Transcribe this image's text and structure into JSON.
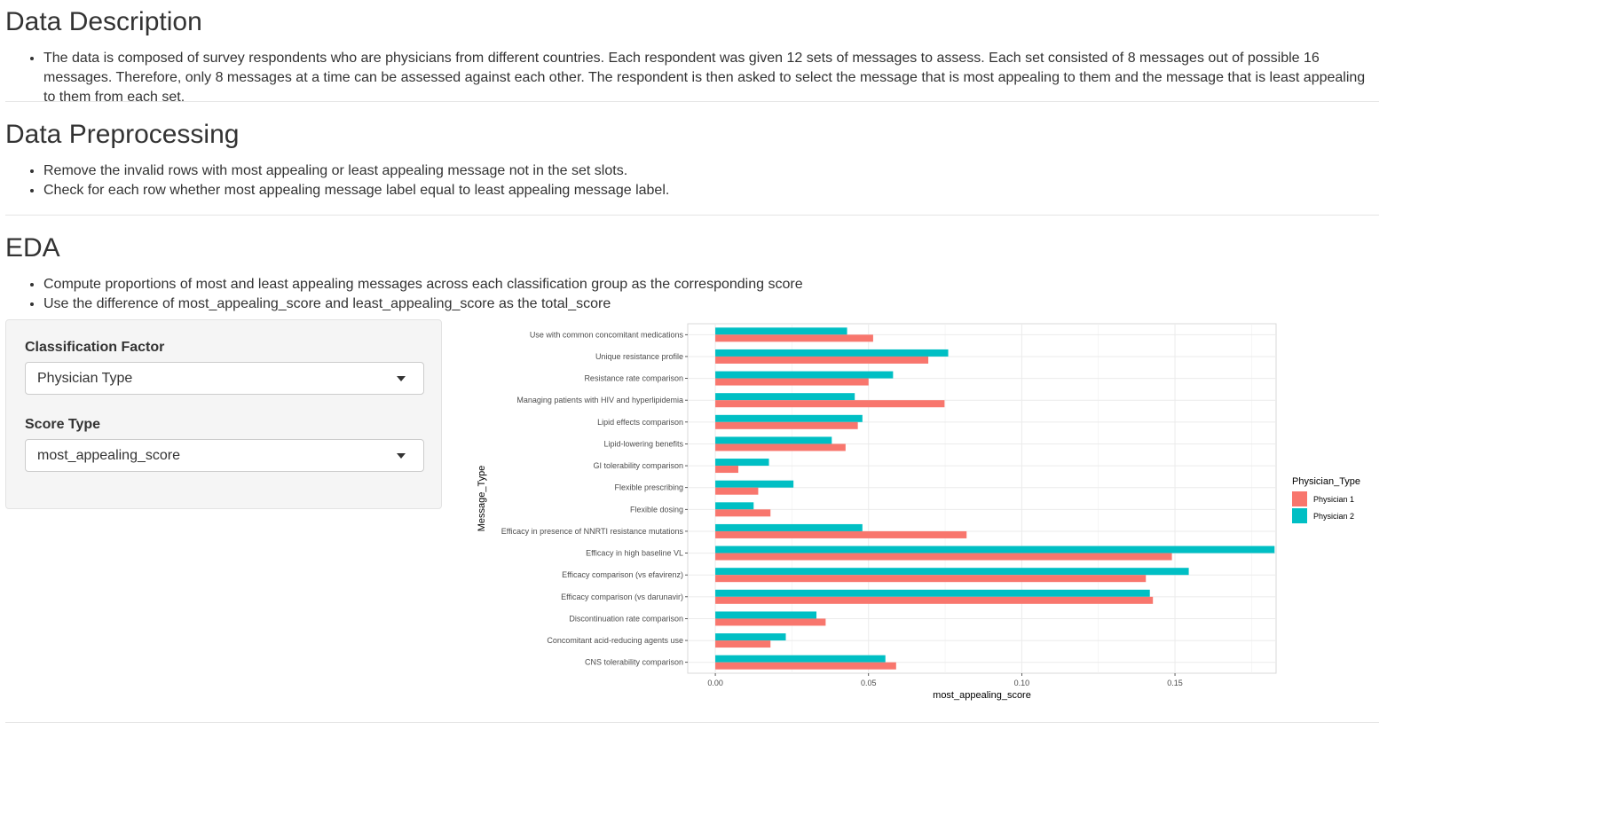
{
  "sections": {
    "description": {
      "title": "Data Description",
      "bullets": [
        "The data is composed of survey respondents who are physicians from different countries. Each respondent was given 12 sets of messages to assess. Each set consisted of 8 messages out of possible 16 messages. Therefore, only 8 messages at a time can be assessed against each other. The respondent is then asked to select the message that is most appealing to them and the message that is least appealing to them from each set."
      ]
    },
    "preprocessing": {
      "title": "Data Preprocessing",
      "bullets": [
        "Remove the invalid rows with most appealing or least appealing message not in the set slots.",
        "Check for each row whether most appealing message label equal to least appealing message label."
      ]
    },
    "eda": {
      "title": "EDA",
      "bullets": [
        "Compute proportions of most and least appealing messages across each classification group as the corresponding score",
        "Use the difference of most_appealing_score and least_appealing_score as the total_score"
      ]
    }
  },
  "controls": {
    "classification": {
      "label": "Classification Factor",
      "value": "Physician Type"
    },
    "score": {
      "label": "Score Type",
      "value": "most_appealing_score"
    }
  },
  "chart_data": {
    "type": "bar",
    "orientation": "horizontal",
    "xlabel": "most_appealing_score",
    "ylabel": "Message_Type",
    "xlim": [
      -0.009,
      0.183
    ],
    "xticks": [
      0.0,
      0.05,
      0.1,
      0.15
    ],
    "xtick_labels": [
      "0.00",
      "0.05",
      "0.10",
      "0.15"
    ],
    "grid": true,
    "legend": {
      "title": "Physician_Type",
      "position": "right"
    },
    "categories": [
      "Use with common concomitant medications",
      "Unique resistance profile",
      "Resistance rate comparison",
      "Managing patients with HIV and hyperlipidemia",
      "Lipid effects comparison",
      "Lipid-lowering benefits",
      "GI tolerability comparison",
      "Flexible prescribing",
      "Flexible dosing",
      "Efficacy in presence of NNRTI resistance mutations",
      "Efficacy in high baseline VL",
      "Efficacy comparison (vs efavirenz)",
      "Efficacy comparison (vs darunavir)",
      "Discontinuation rate comparison",
      "Concomitant acid-reducing agents use",
      "CNS tolerability comparison"
    ],
    "series": [
      {
        "name": "Physician 1",
        "color": "#F8766D",
        "values": [
          0.0515,
          0.0695,
          0.05,
          0.0748,
          0.0465,
          0.0425,
          0.0075,
          0.014,
          0.018,
          0.082,
          0.149,
          0.1405,
          0.1428,
          0.036,
          0.018,
          0.059
        ]
      },
      {
        "name": "Physician 2",
        "color": "#00BFC4",
        "values": [
          0.043,
          0.076,
          0.058,
          0.0455,
          0.048,
          0.038,
          0.0175,
          0.0255,
          0.0125,
          0.048,
          0.1825,
          0.1545,
          0.1418,
          0.033,
          0.023,
          0.0555
        ]
      }
    ]
  }
}
